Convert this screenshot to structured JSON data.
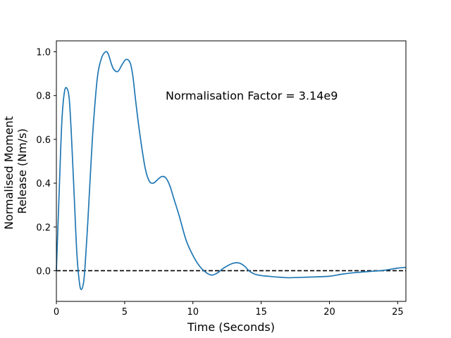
{
  "chart_data": {
    "type": "line",
    "title": "",
    "xlabel": "Time (Seconds)",
    "ylabel_lines": [
      "Normalised Moment",
      "Release (Nm/s)"
    ],
    "xlim": [
      0,
      25.6
    ],
    "ylim": [
      -0.14,
      1.05
    ],
    "xticks": [
      0,
      5,
      10,
      15,
      20,
      25
    ],
    "yticks": [
      0.0,
      0.2,
      0.4,
      0.6,
      0.8,
      1.0
    ],
    "xtick_labels": [
      "0",
      "5",
      "10",
      "15",
      "20",
      "25"
    ],
    "ytick_labels": [
      "0.0",
      "0.2",
      "0.4",
      "0.6",
      "0.8",
      "1.0"
    ],
    "grid": false,
    "annotation": {
      "text": "Normalisation Factor = 3.14e9",
      "x": 8.0,
      "y": 0.8
    },
    "reference_line": {
      "y": 0,
      "style": "dashed",
      "color": "#000000"
    },
    "series": [
      {
        "color": "#1f77b4",
        "x": [
          0,
          0.2,
          0.4,
          0.6,
          0.8,
          0.95,
          1.1,
          1.3,
          1.5,
          1.7,
          1.85,
          2.0,
          2.1,
          2.3,
          2.5,
          2.7,
          3.0,
          3.3,
          3.6,
          3.8,
          4.0,
          4.2,
          4.5,
          4.8,
          5.1,
          5.4,
          5.6,
          5.8,
          6.1,
          6.5,
          6.8,
          7.1,
          7.4,
          7.7,
          8.0,
          8.3,
          8.6,
          9.0,
          9.5,
          10.0,
          10.5,
          11.0,
          11.4,
          11.8,
          12.2,
          12.6,
          13.0,
          13.4,
          13.8,
          14.1,
          14.5,
          15.0,
          15.5,
          16.0,
          16.5,
          17.0,
          18.0,
          19.0,
          20.0,
          21.0,
          22.0,
          23.0,
          24.0,
          25.0,
          25.6
        ],
        "y": [
          0.0,
          0.35,
          0.68,
          0.82,
          0.83,
          0.78,
          0.62,
          0.35,
          0.08,
          -0.06,
          -0.085,
          -0.05,
          0.02,
          0.22,
          0.45,
          0.66,
          0.88,
          0.97,
          1.0,
          0.99,
          0.95,
          0.92,
          0.91,
          0.94,
          0.965,
          0.95,
          0.89,
          0.78,
          0.63,
          0.47,
          0.41,
          0.4,
          0.415,
          0.43,
          0.425,
          0.39,
          0.33,
          0.25,
          0.14,
          0.07,
          0.02,
          -0.01,
          -0.02,
          -0.01,
          0.01,
          0.025,
          0.035,
          0.035,
          0.02,
          0.0,
          -0.015,
          -0.022,
          -0.025,
          -0.028,
          -0.03,
          -0.032,
          -0.03,
          -0.028,
          -0.025,
          -0.015,
          -0.008,
          -0.003,
          0.002,
          0.012,
          0.015
        ]
      }
    ]
  }
}
